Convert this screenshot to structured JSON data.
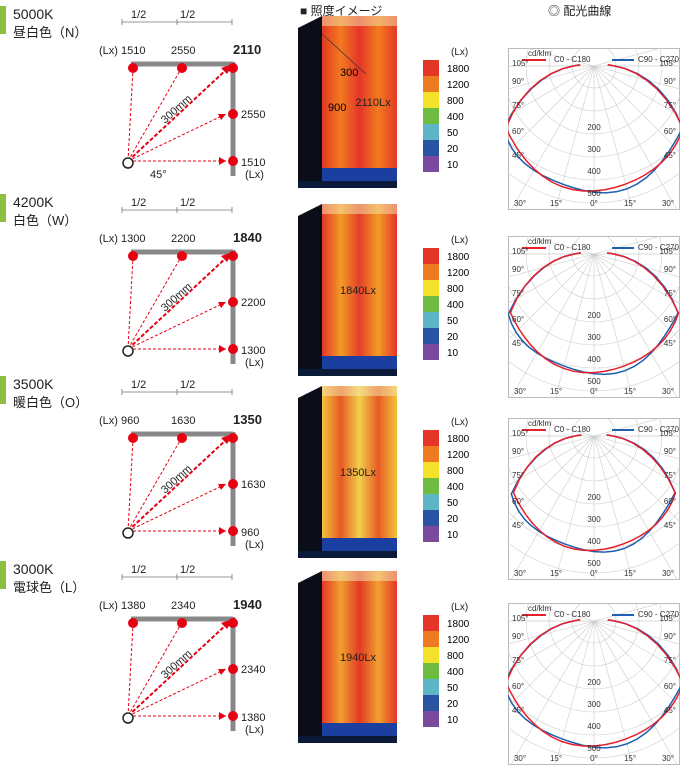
{
  "headers": {
    "illuminance_image": "■ 照度イメージ",
    "light_distribution": "◎ 配光曲線"
  },
  "common": {
    "half_label": "1/2",
    "unit_lx": "(Lx)",
    "distance": "300mm",
    "angle_45": "45°",
    "dist_300": "300",
    "dist_900": "900",
    "polar_unit": "cd/klm",
    "legend_c0": "C0 - C180",
    "legend_c90": "C90 - C270",
    "scale_unit": "(Lx)",
    "scale_values": [
      "1800",
      "1200",
      "800",
      "400",
      "50",
      "20",
      "10"
    ],
    "polar_rings": [
      "200",
      "300",
      "400",
      "500"
    ],
    "polar_angles_side": [
      "105°",
      "90°",
      "75°",
      "60°",
      "45°"
    ],
    "polar_angles_bottom": [
      "30°",
      "15°",
      "0°",
      "15°",
      "30°"
    ]
  },
  "colors": {
    "accent_green": "#8cbf3f",
    "scale": [
      "#e53528",
      "#ee7a22",
      "#f2e32a",
      "#6dbb3f",
      "#5db5c6",
      "#2a54a2",
      "#7a4a9e"
    ],
    "curve_c0": "#e8202a",
    "curve_c90": "#1f5fb0",
    "point_red": "#e60012"
  },
  "rows": [
    {
      "cct": "5000K",
      "name": "昼白色（N）",
      "top_left": "1510",
      "top_mid": "2550",
      "top_right": "2110",
      "right_mid": "2550",
      "right_bottom": "1510",
      "center": "2110Lx",
      "ring_label": "400"
    },
    {
      "cct": "4200K",
      "name": "白色（W）",
      "top_left": "1300",
      "top_mid": "2200",
      "top_right": "1840",
      "right_mid": "2200",
      "right_bottom": "1300",
      "center": "1840Lx",
      "ring_label": "400"
    },
    {
      "cct": "3500K",
      "name": "暖白色（O）",
      "top_left": "960",
      "top_mid": "1630",
      "top_right": "1350",
      "right_mid": "1630",
      "right_bottom": "960",
      "center": "1350Lx",
      "ring_label": "400"
    },
    {
      "cct": "3000K",
      "name": "電球色（L）",
      "top_left": "1380",
      "top_mid": "2340",
      "top_right": "1940",
      "right_mid": "2340",
      "right_bottom": "1380",
      "center": "1940Lx",
      "ring_label": "400"
    }
  ]
}
